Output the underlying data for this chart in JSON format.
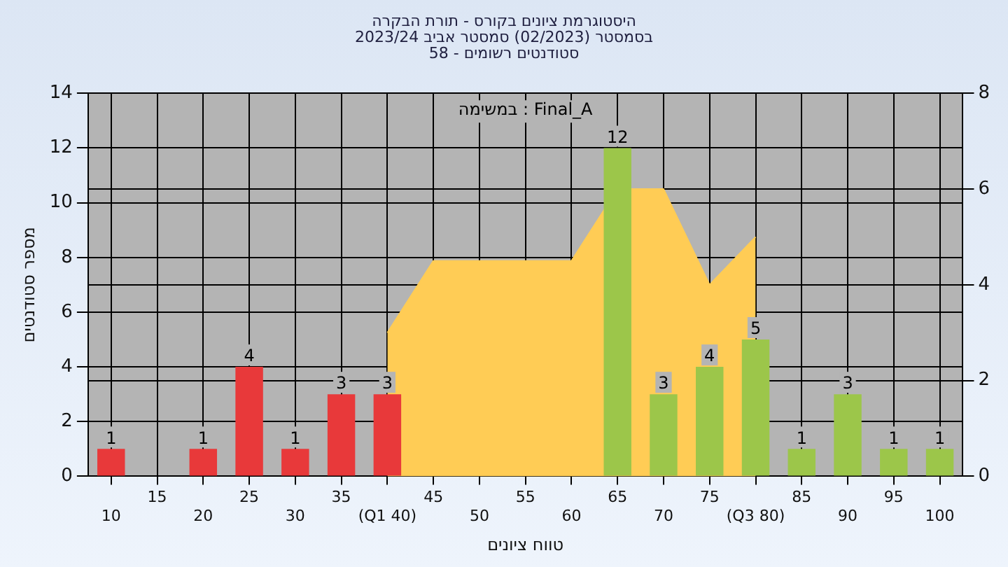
{
  "chart_data": {
    "type": "bar",
    "title": [
      "היסטוגרמת ציונים בקורס - תורת הבקרה",
      "בסמסטר (02/2023) סמסטר אביב 2023/24",
      "סטודנטים רשומים - 58"
    ],
    "xlabel": "טווח ציונים",
    "ylabel": "מספר סטודנטים",
    "annotations": [
      "במשימה : Final_A"
    ],
    "categories": [
      "10",
      "15",
      "20",
      "25",
      "30",
      "35",
      "(Q1 40)",
      "45",
      "50",
      "55",
      "60",
      "65",
      "70",
      "75",
      "(Q3 80)",
      "85",
      "90",
      "95",
      "100"
    ],
    "series": [
      {
        "colors": [
          "#e8393a",
          "#e8393a",
          "#e8393a",
          "#e8393a",
          "#e8393a",
          "#e8393a",
          "#e8393a",
          "#9cc64a",
          "#9cc64a",
          "#9cc64a",
          "#9cc64a",
          "#9cc64a",
          "#9cc64a",
          "#9cc64a",
          "#9cc64a",
          "#9cc64a",
          "#9cc64a",
          "#9cc64a",
          "#9cc64a"
        ],
        "values": [
          1,
          0,
          1,
          4,
          1,
          3,
          3,
          0,
          0,
          0,
          0,
          12,
          3,
          4,
          5,
          1,
          3,
          1,
          1
        ],
        "value_labels": [
          "1",
          null,
          "1",
          "4",
          "1",
          "3",
          "3",
          null,
          null,
          null,
          null,
          "12",
          "3",
          "4",
          "5",
          "1",
          "3",
          "1",
          "1"
        ]
      },
      {
        "type": "area",
        "axis": "y2",
        "color": "#ffcc55",
        "values": [
          null,
          null,
          null,
          null,
          null,
          null,
          3,
          4.5,
          4.5,
          4.5,
          4.5,
          6,
          6,
          4,
          5,
          null,
          null,
          null,
          null
        ]
      }
    ],
    "ylim": [
      0,
      14
    ],
    "yticks": [
      0,
      2,
      4,
      6,
      8,
      10,
      12,
      14
    ],
    "y2lim": [
      0,
      8
    ],
    "y2ticks": [
      0,
      2,
      4,
      6,
      8
    ],
    "grid": true,
    "legend": false
  }
}
